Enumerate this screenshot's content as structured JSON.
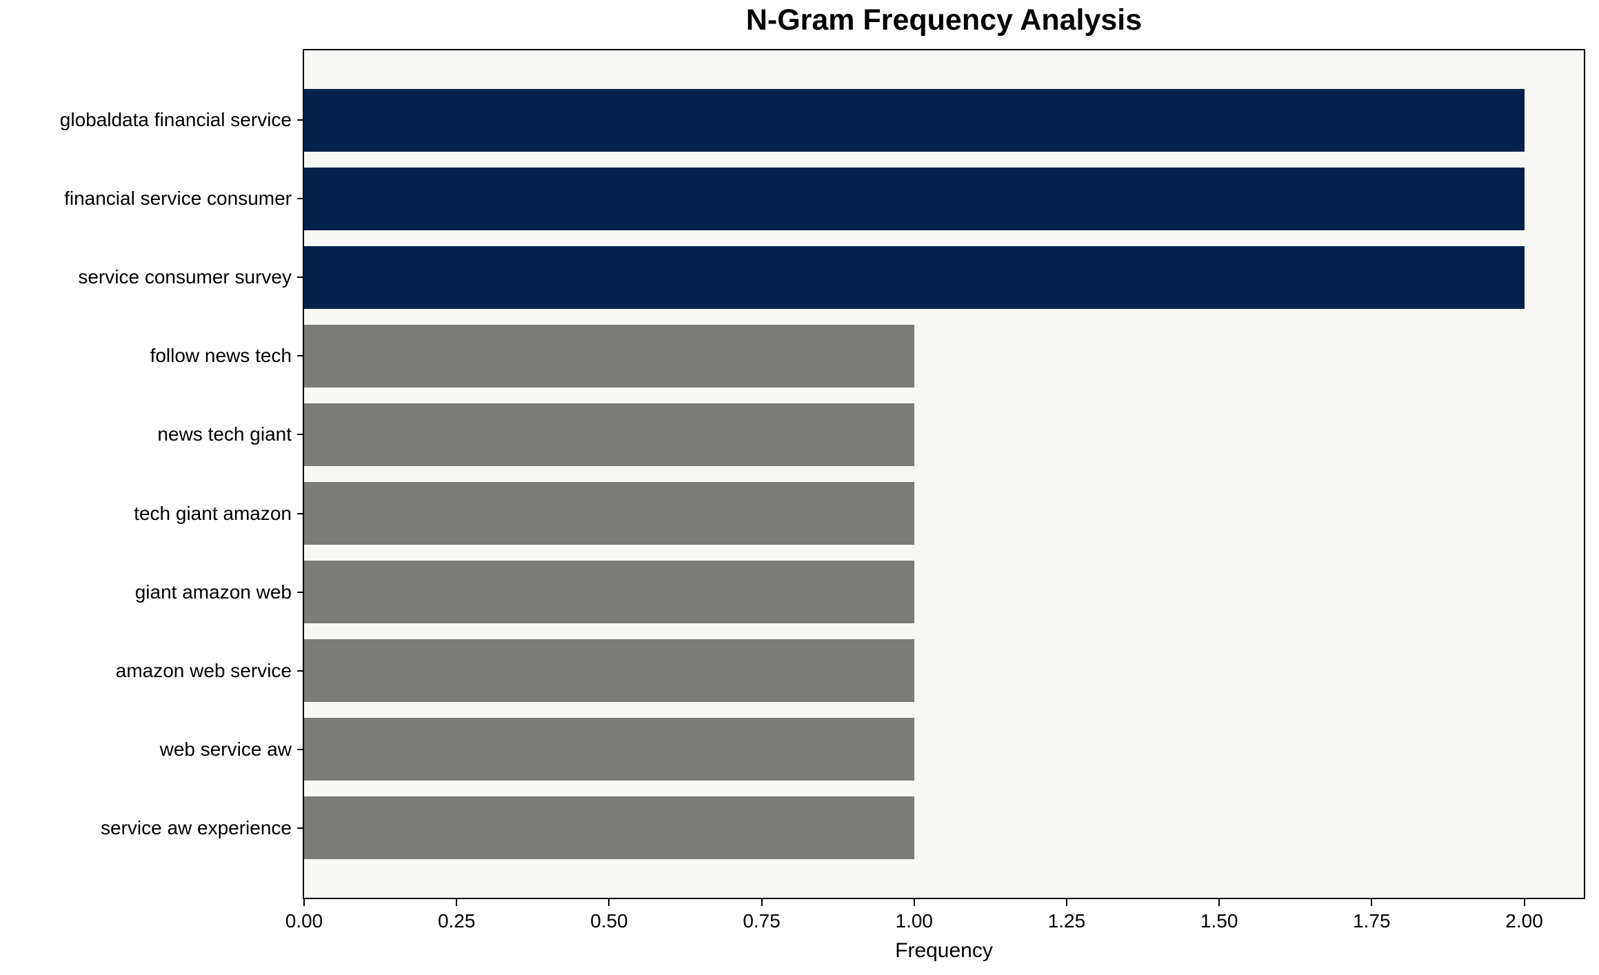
{
  "figure": {
    "background": "#FFFFFF",
    "plot_background": "#F7F7F6",
    "spine_color": "#000000",
    "accent_navy": "#02224C",
    "bar_gray": "#7B7B77"
  },
  "chart_data": {
    "type": "bar",
    "orientation": "horizontal",
    "title": "N-Gram Frequency Analysis",
    "xlabel": "Frequency",
    "ylabel": "",
    "categories": [
      "globaldata financial service",
      "financial service consumer",
      "service consumer survey",
      "follow news tech",
      "news tech giant",
      "tech giant amazon",
      "giant amazon web",
      "amazon web service",
      "web service aw",
      "service aw experience"
    ],
    "values": [
      2,
      2,
      2,
      1,
      1,
      1,
      1,
      1,
      1,
      1
    ],
    "bar_colors": [
      "#02224C",
      "#02224C",
      "#02224C",
      "#7B7B77",
      "#7B7B77",
      "#7B7B77",
      "#7B7B77",
      "#7B7B77",
      "#7B7B77",
      "#7B7B77"
    ],
    "xlim": [
      0,
      2.1
    ],
    "xticks": [
      {
        "value": 0.0,
        "label": "0.00"
      },
      {
        "value": 0.25,
        "label": "0.25"
      },
      {
        "value": 0.5,
        "label": "0.50"
      },
      {
        "value": 0.75,
        "label": "0.75"
      },
      {
        "value": 1.0,
        "label": "1.00"
      },
      {
        "value": 1.25,
        "label": "1.25"
      },
      {
        "value": 1.5,
        "label": "1.50"
      },
      {
        "value": 1.75,
        "label": "1.75"
      },
      {
        "value": 2.0,
        "label": "2.00"
      }
    ],
    "grid": false,
    "legend": null
  }
}
